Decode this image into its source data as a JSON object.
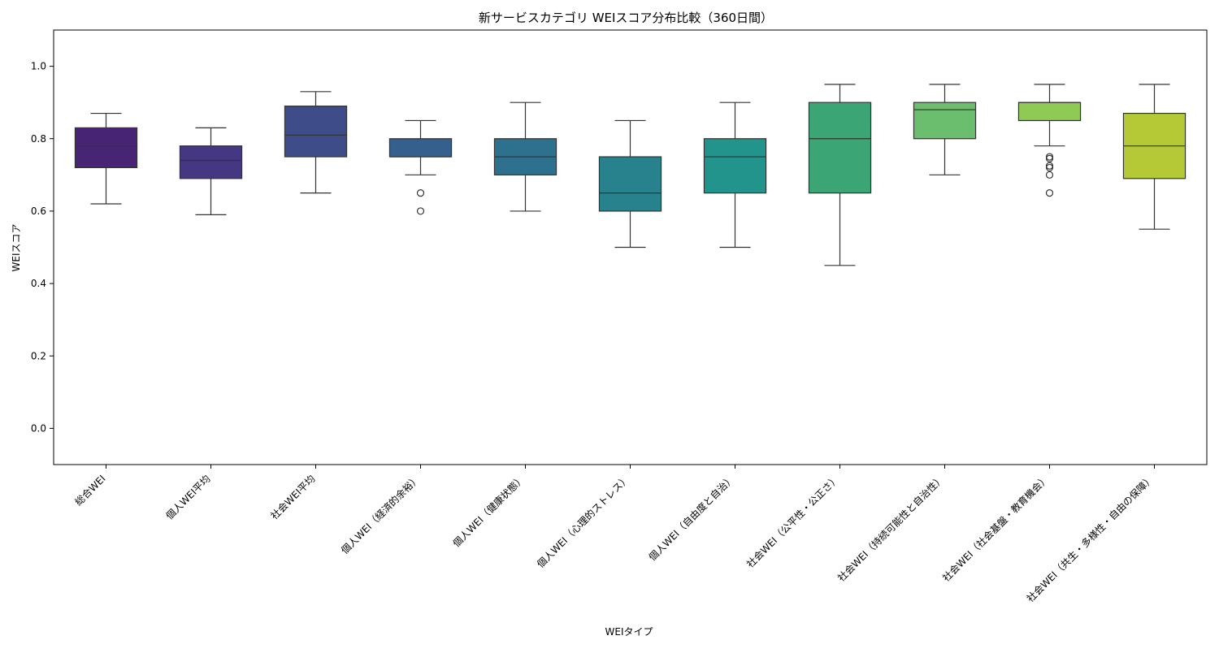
{
  "chart_data": {
    "type": "box",
    "title": "新サービスカテゴリ WEIスコア分布比較（360日間）",
    "xlabel": "WEIタイプ",
    "ylabel": "WEIスコア",
    "ylim": [
      -0.1,
      1.1
    ],
    "yticks": [
      0.0,
      0.2,
      0.4,
      0.6,
      0.8,
      1.0
    ],
    "ytick_labels": [
      "0.0",
      "0.2",
      "0.4",
      "0.6",
      "0.8",
      "1.0"
    ],
    "grid": false,
    "legend": "none",
    "categories": [
      "総合WEI",
      "個人WEI平均",
      "社会WEI平均",
      "個人WEI（経済的余裕）",
      "個人WEI（健康状態）",
      "個人WEI（心理的ストレス）",
      "個人WEI（自由度と自治）",
      "社会WEI（公平性・公正さ）",
      "社会WEI（持続可能性と自治性）",
      "社会WEI（社会基盤・教育機会）",
      "社会WEI（共生・多様性・自由の保障）"
    ],
    "boxes": [
      {
        "whislo": 0.62,
        "q1": 0.72,
        "med": 0.78,
        "q3": 0.83,
        "whishi": 0.87,
        "fliers": [],
        "color": "#482475"
      },
      {
        "whislo": 0.59,
        "q1": 0.69,
        "med": 0.74,
        "q3": 0.78,
        "whishi": 0.83,
        "fliers": [],
        "color": "#453781"
      },
      {
        "whislo": 0.65,
        "q1": 0.75,
        "med": 0.81,
        "q3": 0.89,
        "whishi": 0.93,
        "fliers": [],
        "color": "#3e4c8a"
      },
      {
        "whislo": 0.7,
        "q1": 0.75,
        "med": 0.75,
        "q3": 0.8,
        "whishi": 0.85,
        "fliers": [
          0.65,
          0.6
        ],
        "color": "#355f8d"
      },
      {
        "whislo": 0.6,
        "q1": 0.7,
        "med": 0.75,
        "q3": 0.8,
        "whishi": 0.9,
        "fliers": [],
        "color": "#2d718e"
      },
      {
        "whislo": 0.5,
        "q1": 0.6,
        "med": 0.65,
        "q3": 0.75,
        "whishi": 0.85,
        "fliers": [],
        "color": "#27828e"
      },
      {
        "whislo": 0.5,
        "q1": 0.65,
        "med": 0.75,
        "q3": 0.8,
        "whishi": 0.9,
        "fliers": [],
        "color": "#22948c"
      },
      {
        "whislo": 0.45,
        "q1": 0.65,
        "med": 0.8,
        "q3": 0.9,
        "whishi": 0.95,
        "fliers": [],
        "color": "#3ba576"
      },
      {
        "whislo": 0.7,
        "q1": 0.8,
        "med": 0.88,
        "q3": 0.9,
        "whishi": 0.95,
        "fliers": [],
        "color": "#6abe6e"
      },
      {
        "whislo": 0.78,
        "q1": 0.85,
        "med": 0.9,
        "q3": 0.9,
        "whishi": 0.95,
        "fliers": [
          0.75,
          0.745,
          0.725,
          0.72,
          0.7,
          0.65
        ],
        "color": "#8fca55"
      },
      {
        "whislo": 0.55,
        "q1": 0.69,
        "med": 0.78,
        "q3": 0.87,
        "whishi": 0.95,
        "fliers": [],
        "color": "#b4c935"
      }
    ]
  }
}
